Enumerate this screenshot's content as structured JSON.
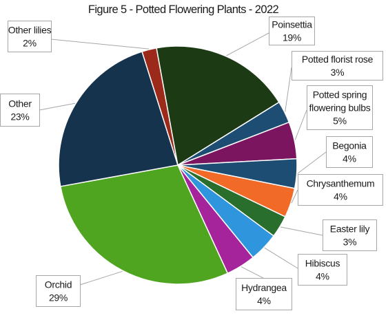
{
  "chart_data": {
    "type": "pie",
    "title": "Figure 5 - Potted Flowering Plants - 2022",
    "slices": [
      {
        "label_lines": [
          "Other lilies"
        ],
        "label": "Other lilies",
        "value": 2,
        "value_text": "2%",
        "color": "#9b2a1a"
      },
      {
        "label_lines": [
          "Poinsettia"
        ],
        "label": "Poinsettia",
        "value": 19,
        "value_text": "19%",
        "color": "#1c3a14"
      },
      {
        "label_lines": [
          "Potted florist rose"
        ],
        "label": "Potted florist rose",
        "value": 3,
        "value_text": "3%",
        "color": "#1d4d73"
      },
      {
        "label_lines": [
          "Potted spring",
          "flowering bulbs"
        ],
        "label": "Potted spring flowering bulbs",
        "value": 5,
        "value_text": "5%",
        "color": "#7b1560"
      },
      {
        "label_lines": [
          "Begonia"
        ],
        "label": "Begonia",
        "value": 4,
        "value_text": "4%",
        "color": "#1d4d73"
      },
      {
        "label_lines": [
          "Chrysanthemum"
        ],
        "label": "Chrysanthemum",
        "value": 4,
        "value_text": "4%",
        "color": "#f26a28"
      },
      {
        "label_lines": [
          "Easter lily"
        ],
        "label": "Easter lily",
        "value": 3,
        "value_text": "3%",
        "color": "#2a6e2e"
      },
      {
        "label_lines": [
          "Hibiscus"
        ],
        "label": "Hibiscus",
        "value": 4,
        "value_text": "4%",
        "color": "#2f95dc"
      },
      {
        "label_lines": [
          "Hydrangea"
        ],
        "label": "Hydrangea",
        "value": 4,
        "value_text": "4%",
        "color": "#a5239b"
      },
      {
        "label_lines": [
          "Orchid"
        ],
        "label": "Orchid",
        "value": 29,
        "value_text": "29%",
        "color": "#4fa51f"
      },
      {
        "label_lines": [
          "Other"
        ],
        "label": "Other",
        "value": 23,
        "value_text": "23%",
        "color": "#16334e"
      }
    ]
  }
}
